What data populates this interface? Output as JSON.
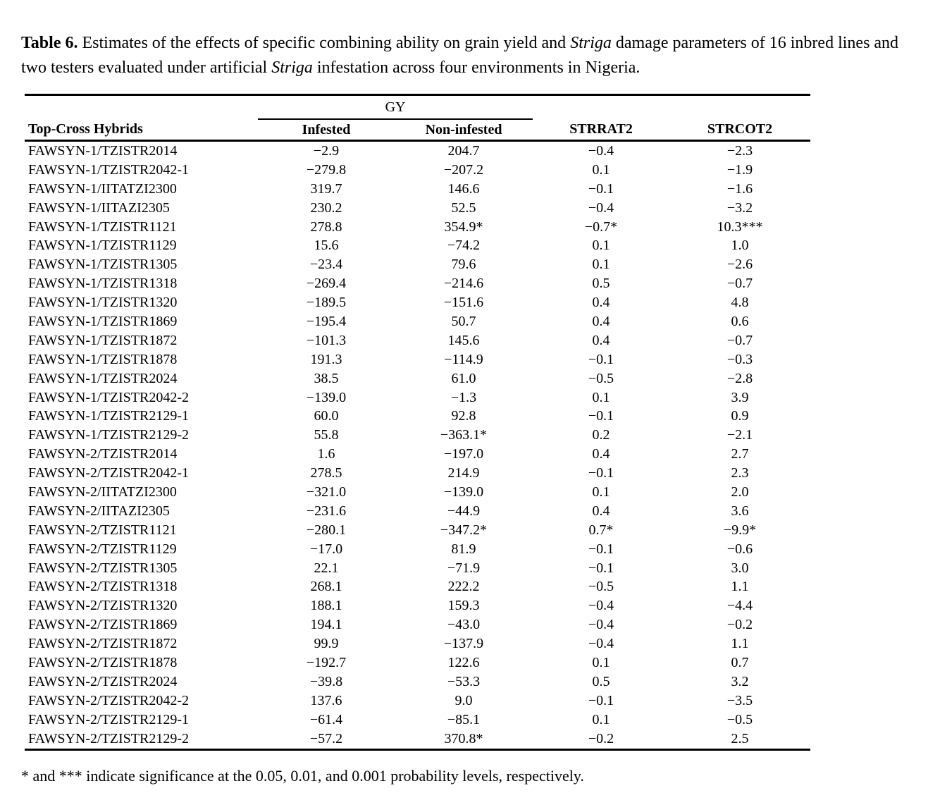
{
  "colors": {
    "text": "#000000",
    "background": "#ffffff",
    "rule": "#000000"
  },
  "caption": {
    "label": "Table 6.",
    "segments": [
      {
        "text": " Estimates of the effects of specific combining ability on grain yield and ",
        "italic": false
      },
      {
        "text": "Striga",
        "italic": true
      },
      {
        "text": " damage parameters of 16 inbred lines and two testers evaluated under artificial ",
        "italic": false
      },
      {
        "text": "Striga",
        "italic": true
      },
      {
        "text": " infestation across four environments in Nigeria.",
        "italic": false
      }
    ]
  },
  "table": {
    "group_header": {
      "label": "GY"
    },
    "columns": [
      "Top-Cross Hybrids",
      "Infested",
      "Non-infested",
      "STRRAT2",
      "STRCOT2"
    ],
    "rows": [
      {
        "hybrid": "FAWSYN-1/TZISTR2014",
        "infested": "−2.9",
        "non_infested": "204.7",
        "strrat2": "−0.4",
        "strcot2": "−2.3"
      },
      {
        "hybrid": "FAWSYN-1/TZISTR2042-1",
        "infested": "−279.8",
        "non_infested": "−207.2",
        "strrat2": "0.1",
        "strcot2": "−1.9"
      },
      {
        "hybrid": "FAWSYN-1/IITATZI2300",
        "infested": "319.7",
        "non_infested": "146.6",
        "strrat2": "−0.1",
        "strcot2": "−1.6"
      },
      {
        "hybrid": "FAWSYN-1/IITAZI2305",
        "infested": "230.2",
        "non_infested": "52.5",
        "strrat2": "−0.4",
        "strcot2": "−3.2"
      },
      {
        "hybrid": "FAWSYN-1/TZISTR1121",
        "infested": "278.8",
        "non_infested": "354.9*",
        "strrat2": "−0.7*",
        "strcot2": "10.3***"
      },
      {
        "hybrid": "FAWSYN-1/TZISTR1129",
        "infested": "15.6",
        "non_infested": "−74.2",
        "strrat2": "0.1",
        "strcot2": "1.0"
      },
      {
        "hybrid": "FAWSYN-1/TZISTR1305",
        "infested": "−23.4",
        "non_infested": "79.6",
        "strrat2": "0.1",
        "strcot2": "−2.6"
      },
      {
        "hybrid": "FAWSYN-1/TZISTR1318",
        "infested": "−269.4",
        "non_infested": "−214.6",
        "strrat2": "0.5",
        "strcot2": "−0.7"
      },
      {
        "hybrid": "FAWSYN-1/TZISTR1320",
        "infested": "−189.5",
        "non_infested": "−151.6",
        "strrat2": "0.4",
        "strcot2": "4.8"
      },
      {
        "hybrid": "FAWSYN-1/TZISTR1869",
        "infested": "−195.4",
        "non_infested": "50.7",
        "strrat2": "0.4",
        "strcot2": "0.6"
      },
      {
        "hybrid": "FAWSYN-1/TZISTR1872",
        "infested": "−101.3",
        "non_infested": "145.6",
        "strrat2": "0.4",
        "strcot2": "−0.7"
      },
      {
        "hybrid": "FAWSYN-1/TZISTR1878",
        "infested": "191.3",
        "non_infested": "−114.9",
        "strrat2": "−0.1",
        "strcot2": "−0.3"
      },
      {
        "hybrid": "FAWSYN-1/TZISTR2024",
        "infested": "38.5",
        "non_infested": "61.0",
        "strrat2": "−0.5",
        "strcot2": "−2.8"
      },
      {
        "hybrid": "FAWSYN-1/TZISTR2042-2",
        "infested": "−139.0",
        "non_infested": "−1.3",
        "strrat2": "0.1",
        "strcot2": "3.9"
      },
      {
        "hybrid": "FAWSYN-1/TZISTR2129-1",
        "infested": "60.0",
        "non_infested": "92.8",
        "strrat2": "−0.1",
        "strcot2": "0.9"
      },
      {
        "hybrid": "FAWSYN-1/TZISTR2129-2",
        "infested": "55.8",
        "non_infested": "−363.1*",
        "strrat2": "0.2",
        "strcot2": "−2.1"
      },
      {
        "hybrid": "FAWSYN-2/TZISTR2014",
        "infested": "1.6",
        "non_infested": "−197.0",
        "strrat2": "0.4",
        "strcot2": "2.7"
      },
      {
        "hybrid": "FAWSYN-2/TZISTR2042-1",
        "infested": "278.5",
        "non_infested": "214.9",
        "strrat2": "−0.1",
        "strcot2": "2.3"
      },
      {
        "hybrid": "FAWSYN-2/IITATZI2300",
        "infested": "−321.0",
        "non_infested": "−139.0",
        "strrat2": "0.1",
        "strcot2": "2.0"
      },
      {
        "hybrid": "FAWSYN-2/IITAZI2305",
        "infested": "−231.6",
        "non_infested": "−44.9",
        "strrat2": "0.4",
        "strcot2": "3.6"
      },
      {
        "hybrid": "FAWSYN-2/TZISTR1121",
        "infested": "−280.1",
        "non_infested": "−347.2*",
        "strrat2": "0.7*",
        "strcot2": "−9.9*"
      },
      {
        "hybrid": "FAWSYN-2/TZISTR1129",
        "infested": "−17.0",
        "non_infested": "81.9",
        "strrat2": "−0.1",
        "strcot2": "−0.6"
      },
      {
        "hybrid": "FAWSYN-2/TZISTR1305",
        "infested": "22.1",
        "non_infested": "−71.9",
        "strrat2": "−0.1",
        "strcot2": "3.0"
      },
      {
        "hybrid": "FAWSYN-2/TZISTR1318",
        "infested": "268.1",
        "non_infested": "222.2",
        "strrat2": "−0.5",
        "strcot2": "1.1"
      },
      {
        "hybrid": "FAWSYN-2/TZISTR1320",
        "infested": "188.1",
        "non_infested": "159.3",
        "strrat2": "−0.4",
        "strcot2": "−4.4"
      },
      {
        "hybrid": "FAWSYN-2/TZISTR1869",
        "infested": "194.1",
        "non_infested": "−43.0",
        "strrat2": "−0.4",
        "strcot2": "−0.2"
      },
      {
        "hybrid": "FAWSYN-2/TZISTR1872",
        "infested": "99.9",
        "non_infested": "−137.9",
        "strrat2": "−0.4",
        "strcot2": "1.1"
      },
      {
        "hybrid": "FAWSYN-2/TZISTR1878",
        "infested": "−192.7",
        "non_infested": "122.6",
        "strrat2": "0.1",
        "strcot2": "0.7"
      },
      {
        "hybrid": "FAWSYN-2/TZISTR2024",
        "infested": "−39.8",
        "non_infested": "−53.3",
        "strrat2": "0.5",
        "strcot2": "3.2"
      },
      {
        "hybrid": "FAWSYN-2/TZISTR2042-2",
        "infested": "137.6",
        "non_infested": "9.0",
        "strrat2": "−0.1",
        "strcot2": "−3.5"
      },
      {
        "hybrid": "FAWSYN-2/TZISTR2129-1",
        "infested": "−61.4",
        "non_infested": "−85.1",
        "strrat2": "0.1",
        "strcot2": "−0.5"
      },
      {
        "hybrid": "FAWSYN-2/TZISTR2129-2",
        "infested": "−57.2",
        "non_infested": "370.8*",
        "strrat2": "−0.2",
        "strcot2": "2.5"
      }
    ]
  },
  "footnote": "* and *** indicate significance at the 0.05, 0.01, and 0.001 probability levels, respectively."
}
